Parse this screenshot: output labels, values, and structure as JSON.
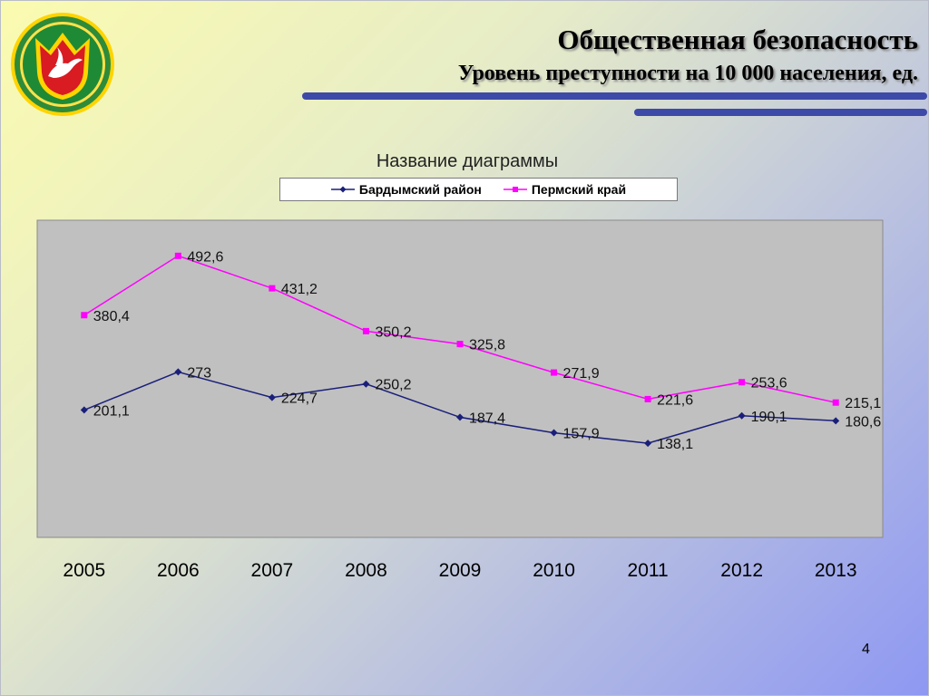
{
  "slide": {
    "title": "Общественная безопасность",
    "subtitle": "Уровень преступности на 10 000 населения, ед.",
    "page_number": "4",
    "accent_color": "#3d4aa8"
  },
  "chart_data": {
    "type": "line",
    "title": "Название диаграммы",
    "categories": [
      "2005",
      "2006",
      "2007",
      "2008",
      "2009",
      "2010",
      "2011",
      "2012",
      "2013"
    ],
    "series": [
      {
        "name": "Бардымский район",
        "color": "#1a1f7a",
        "marker": "diamond",
        "values": [
          201.1,
          273,
          224.7,
          250.2,
          187.4,
          157.9,
          138.1,
          190.1,
          180.6
        ],
        "labels": [
          "201,1",
          "273",
          "224,7",
          "250,2",
          "187,4",
          "157,9",
          "138,1",
          "190,1",
          "180,6"
        ]
      },
      {
        "name": "Пермский край",
        "color": "#ff00ff",
        "marker": "square",
        "values": [
          380.4,
          492.6,
          431.2,
          350.2,
          325.8,
          271.9,
          221.6,
          253.6,
          215.1
        ],
        "labels": [
          "380,4",
          "492,6",
          "431,2",
          "350,2",
          "325,8",
          "271,9",
          "221,6",
          "253,6",
          "215,1"
        ]
      }
    ],
    "ylim": [
      -40,
      560
    ],
    "grid": false,
    "y_axis_visible": false,
    "legend_position": "top",
    "plot_background": "#c0c0c0"
  }
}
